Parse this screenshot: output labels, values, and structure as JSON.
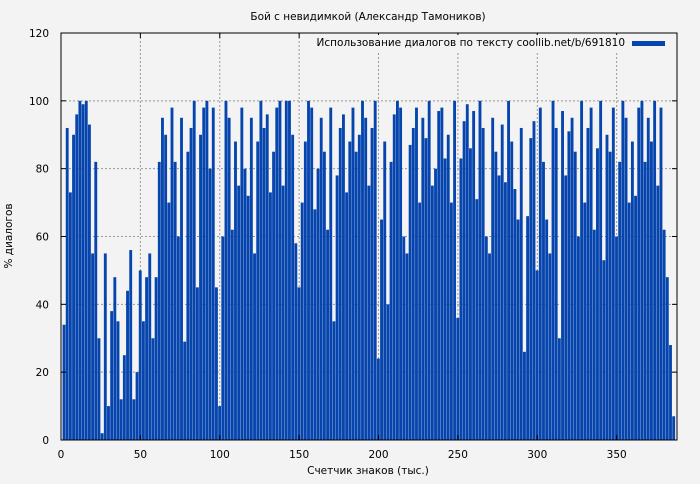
{
  "chart_data": {
    "type": "bar",
    "title": "Бой с невидимкой (Александр Тамоников)",
    "xlabel": "Счетчик знаков (тыс.)",
    "ylabel": "% диалогов",
    "xlim": [
      0,
      388
    ],
    "ylim": [
      0,
      120
    ],
    "xticks": [
      0,
      50,
      100,
      150,
      200,
      250,
      300,
      350
    ],
    "yticks": [
      0,
      20,
      40,
      60,
      80,
      100,
      120
    ],
    "grid": true,
    "legend_placement": "top-right",
    "bar_color": "#0645ad",
    "series": [
      {
        "name": "Использование диалогов по тексту coollib.net/b/691810",
        "x": [
          2,
          4,
          6,
          8,
          10,
          12,
          14,
          16,
          18,
          20,
          22,
          24,
          26,
          28,
          30,
          32,
          34,
          36,
          38,
          40,
          42,
          44,
          46,
          48,
          50,
          52,
          54,
          56,
          58,
          60,
          62,
          64,
          66,
          68,
          70,
          72,
          74,
          76,
          78,
          80,
          82,
          84,
          86,
          88,
          90,
          92,
          94,
          96,
          98,
          100,
          102,
          104,
          106,
          108,
          110,
          112,
          114,
          116,
          118,
          120,
          122,
          124,
          126,
          128,
          130,
          132,
          134,
          136,
          138,
          140,
          142,
          144,
          146,
          148,
          150,
          152,
          154,
          156,
          158,
          160,
          162,
          164,
          166,
          168,
          170,
          172,
          174,
          176,
          178,
          180,
          182,
          184,
          186,
          188,
          190,
          192,
          194,
          196,
          198,
          200,
          202,
          204,
          206,
          208,
          210,
          212,
          214,
          216,
          218,
          220,
          222,
          224,
          226,
          228,
          230,
          232,
          234,
          236,
          238,
          240,
          242,
          244,
          246,
          248,
          250,
          252,
          254,
          256,
          258,
          260,
          262,
          264,
          266,
          268,
          270,
          272,
          274,
          276,
          278,
          280,
          282,
          284,
          286,
          288,
          290,
          292,
          294,
          296,
          298,
          300,
          302,
          304,
          306,
          308,
          310,
          312,
          314,
          316,
          318,
          320,
          322,
          324,
          326,
          328,
          330,
          332,
          334,
          336,
          338,
          340,
          342,
          344,
          346,
          348,
          350,
          352,
          354,
          356,
          358,
          360,
          362,
          364,
          366,
          368,
          370,
          372,
          374,
          376,
          378,
          380,
          382,
          384,
          386
        ],
        "values": [
          34,
          92,
          73,
          90,
          96,
          100,
          99,
          100,
          93,
          55,
          82,
          30,
          2,
          55,
          10,
          38,
          48,
          35,
          12,
          25,
          44,
          56,
          12,
          20,
          50,
          35,
          48,
          55,
          30,
          48,
          82,
          95,
          90,
          70,
          98,
          82,
          60,
          95,
          29,
          85,
          92,
          100,
          45,
          90,
          98,
          100,
          80,
          98,
          45,
          10,
          60,
          100,
          95,
          62,
          88,
          75,
          98,
          80,
          72,
          95,
          55,
          88,
          100,
          92,
          96,
          73,
          85,
          98,
          100,
          75,
          100,
          100,
          90,
          58,
          45,
          70,
          88,
          100,
          98,
          68,
          80,
          95,
          85,
          62,
          98,
          35,
          78,
          92,
          96,
          73,
          88,
          98,
          85,
          90,
          100,
          95,
          75,
          92,
          100,
          24,
          65,
          88,
          40,
          82,
          96,
          100,
          98,
          60,
          55,
          87,
          92,
          98,
          70,
          95,
          89,
          100,
          75,
          80,
          97,
          98,
          83,
          90,
          70,
          100,
          36,
          83,
          94,
          99,
          86,
          97,
          71,
          100,
          92,
          60,
          55,
          95,
          85,
          78,
          93,
          76,
          100,
          88,
          74,
          65,
          92,
          26,
          66,
          89,
          94,
          50,
          98,
          82,
          65,
          55,
          100,
          92,
          30,
          97,
          78,
          91,
          95,
          85,
          60,
          100,
          70,
          92,
          98,
          62,
          86,
          100,
          53,
          90,
          85,
          98,
          60,
          82,
          100,
          95,
          70,
          88,
          72,
          98,
          100,
          82,
          95,
          88,
          100,
          75,
          98,
          62,
          48,
          28,
          7
        ]
      }
    ]
  }
}
